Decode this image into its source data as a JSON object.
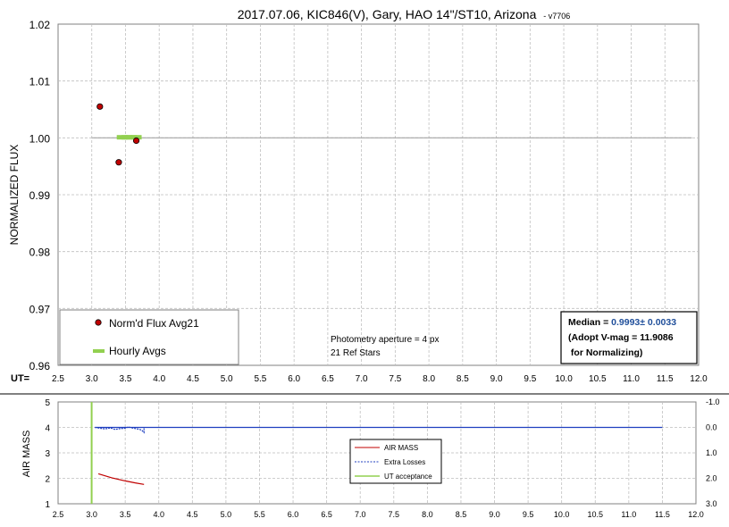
{
  "colors": {
    "flux_marker": "#c00000",
    "hourly": "#92d050",
    "reference_line": "#a6a6a6",
    "grid": "#bfbfbf",
    "air_mass": "#c00000",
    "extra_losses": "#1f3fbf",
    "ut_acceptance": "#92d050",
    "median_value": "#1f4e9a"
  },
  "chart_data": [
    {
      "type": "scatter",
      "title": "2017.07.06, KIC846(V), Gary, HAO 14\"/ST10, Arizona",
      "title_suffix": "- v7706",
      "ylabel": "NORMALIZED FLUX",
      "x_prefix_label": "UT=",
      "xlim": [
        2.5,
        12.0
      ],
      "ylim": [
        0.96,
        1.02
      ],
      "x_ticks": [
        "2.5",
        "3.0",
        "3.5",
        "4.0",
        "4.5",
        "5.0",
        "5.5",
        "6.0",
        "6.5",
        "7.0",
        "7.5",
        "8.0",
        "8.5",
        "9.0",
        "9.5",
        "10.0",
        "10.5",
        "11.0",
        "11.5",
        "12.0"
      ],
      "y_ticks": [
        "0.96",
        "0.97",
        "0.98",
        "0.99",
        "1.00",
        "1.01",
        "1.02"
      ],
      "grid": true,
      "series": [
        {
          "name": "Norm'd Flux Avg21",
          "marker": "circle",
          "x": [
            3.12,
            3.4,
            3.66
          ],
          "y": [
            1.0055,
            0.9957,
            0.9995
          ]
        },
        {
          "name": "Hourly Avgs",
          "marker": "dash",
          "x": [
            3.45,
            3.52,
            3.59,
            3.66
          ],
          "y": [
            1.0001,
            1.0001,
            1.0001,
            1.0001
          ]
        }
      ],
      "reference_line": {
        "y": 1.0,
        "x": [
          3.0,
          11.9
        ]
      },
      "legend_position": "bottom-left",
      "notes": [
        "Photometry aperture = 4 px",
        "21 Ref Stars"
      ],
      "median_box": {
        "label": "Median = ",
        "value": "0.9993± 0.0033",
        "line2": "(Adopt V-mag = 11.9086",
        "line3": " for Normalizing)"
      }
    },
    {
      "type": "line",
      "ylabel": "AIR MASS",
      "xlim": [
        2.5,
        12.0
      ],
      "ylim": [
        1,
        5
      ],
      "y2lim": [
        3.0,
        -1.0
      ],
      "x_ticks": [
        "2.5",
        "3.0",
        "3.5",
        "4.0",
        "4.5",
        "5.0",
        "5.5",
        "6.0",
        "6.5",
        "7.0",
        "7.5",
        "8.0",
        "8.5",
        "9.0",
        "9.5",
        "10.0",
        "10.5",
        "11.0",
        "11.5",
        "12.0"
      ],
      "y_ticks": [
        "1",
        "2",
        "3",
        "4",
        "5"
      ],
      "y2_ticks": [
        "-1.0",
        "0.0",
        "1.0",
        "2.0",
        "3.0"
      ],
      "grid": true,
      "series": [
        {
          "name": "AIR MASS",
          "axis": "left",
          "x": [
            3.1,
            3.3,
            3.5,
            3.65,
            3.78
          ],
          "y": [
            2.18,
            2.02,
            1.9,
            1.82,
            1.76
          ]
        },
        {
          "name": "Extra Losses",
          "axis": "right",
          "x": [
            3.05,
            3.12,
            3.2,
            3.28,
            3.35,
            3.42,
            3.5,
            3.55,
            3.6,
            3.66,
            3.72,
            3.75,
            3.78,
            3.78
          ],
          "y": [
            0.0,
            0.03,
            0.06,
            0.02,
            0.08,
            0.05,
            0.03,
            -0.02,
            0.02,
            0.05,
            0.08,
            0.12,
            0.2,
            0.0
          ]
        },
        {
          "name": "Extra Losses baseline",
          "axis": "right",
          "legend": false,
          "x": [
            3.05,
            11.5
          ],
          "y": [
            0.0,
            0.0
          ]
        },
        {
          "name": "UT acceptance",
          "axis": "vertical",
          "x": [
            3.0,
            3.0
          ]
        }
      ],
      "legend_position": "center"
    }
  ]
}
